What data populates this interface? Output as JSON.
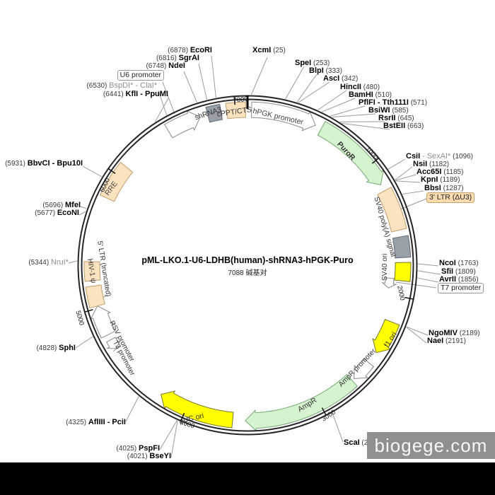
{
  "title": "pML-LKO.1-U6-LDHB(human)-shRNA3-hPGK-Puro",
  "subtitle": "7088 碱基对",
  "plasmid_length_bp": 7088,
  "watermark": "biogege.com",
  "colors": {
    "green": "#d6f3cf",
    "yellow": "#ffff00",
    "tan": "#fbe3c0",
    "gray_box": "#99a0a8",
    "backbone": "#262626"
  },
  "ticks": [
    "1000",
    "2000",
    "3000",
    "4000",
    "5000",
    "6000",
    "7000"
  ],
  "features": {
    "u6": "U6 promoter",
    "shrna3": "shRNA3",
    "cppt": "cPPT/CTS",
    "hpgk": "hPGK promoter",
    "puror": "PuroR",
    "ltr3": "3' LTR (ΔU3)",
    "sv40pa": "SV40 poly(A) signal",
    "sv40ori": "SV40 ori",
    "t7": "T7 promoter",
    "f1": "f1 ori",
    "amprp": "AmpR promoter",
    "ampr": "AmpR",
    "puc": "pUC ori",
    "t3": "T3 promoter",
    "rsv": "RSV promoter",
    "ltr5": "5' LTR (truncated)",
    "psi": "HIV-1 ψ",
    "rre": "RRE"
  },
  "enzymes": [
    {
      "pos": "(6878)",
      "name": "EcoRI"
    },
    {
      "pos": "(6816)",
      "name": "SgrAI"
    },
    {
      "pos": "(6748)",
      "name": "NdeI"
    },
    {
      "pos": "(6530)",
      "gray": "BspDI* - ClaI*"
    },
    {
      "pos": "(6441)",
      "name": "KflI - PpuMI"
    },
    {
      "name": "XcmI",
      "pos": "(25)"
    },
    {
      "name": "SpeI",
      "pos": "(253)"
    },
    {
      "name": "BlpI",
      "pos": "(333)"
    },
    {
      "name": "AscI",
      "pos": "(342)"
    },
    {
      "name": "HincII",
      "pos": "(480)"
    },
    {
      "name": "BamHI",
      "pos": "(510)"
    },
    {
      "name": "PflFI - Tth111I",
      "pos": "(571)"
    },
    {
      "name": "BsiWI",
      "pos": "(585)"
    },
    {
      "name": "RsrII",
      "pos": "(645)"
    },
    {
      "name": "BstEII",
      "pos": "(663)"
    },
    {
      "name": "CsiI",
      "gray": "- SexAI*",
      "pos": "(1096)"
    },
    {
      "name": "NsiI",
      "pos": "(1182)"
    },
    {
      "name": "Acc65I",
      "pos": "(1185)"
    },
    {
      "name": "KpnI",
      "pos": "(1189)"
    },
    {
      "name": "BbsI",
      "pos": "(1287)"
    },
    {
      "name": "NcoI",
      "pos": "(1763)"
    },
    {
      "name": "SfiI",
      "pos": "(1809)"
    },
    {
      "name": "AvrII",
      "pos": "(1856)"
    },
    {
      "name": "NgoMIV",
      "pos": "(2189)"
    },
    {
      "name": "NaeI",
      "pos": "(2191)"
    },
    {
      "name": "ScaI",
      "pos": "(2956)"
    },
    {
      "pos": "(4025)",
      "name": "PspFI"
    },
    {
      "pos": "(4021)",
      "name": "BseYI"
    },
    {
      "pos": "(4325)",
      "name": "AflIII - PciI"
    },
    {
      "pos": "(4828)",
      "name": "SphI"
    },
    {
      "pos": "(5344)",
      "gray": "NruI*"
    },
    {
      "pos": "(5677)",
      "name": "EcoNI"
    },
    {
      "pos": "(5696)",
      "name": "MfeI"
    },
    {
      "pos": "(5931)",
      "name": "BbvCI - Bpu10I"
    }
  ]
}
